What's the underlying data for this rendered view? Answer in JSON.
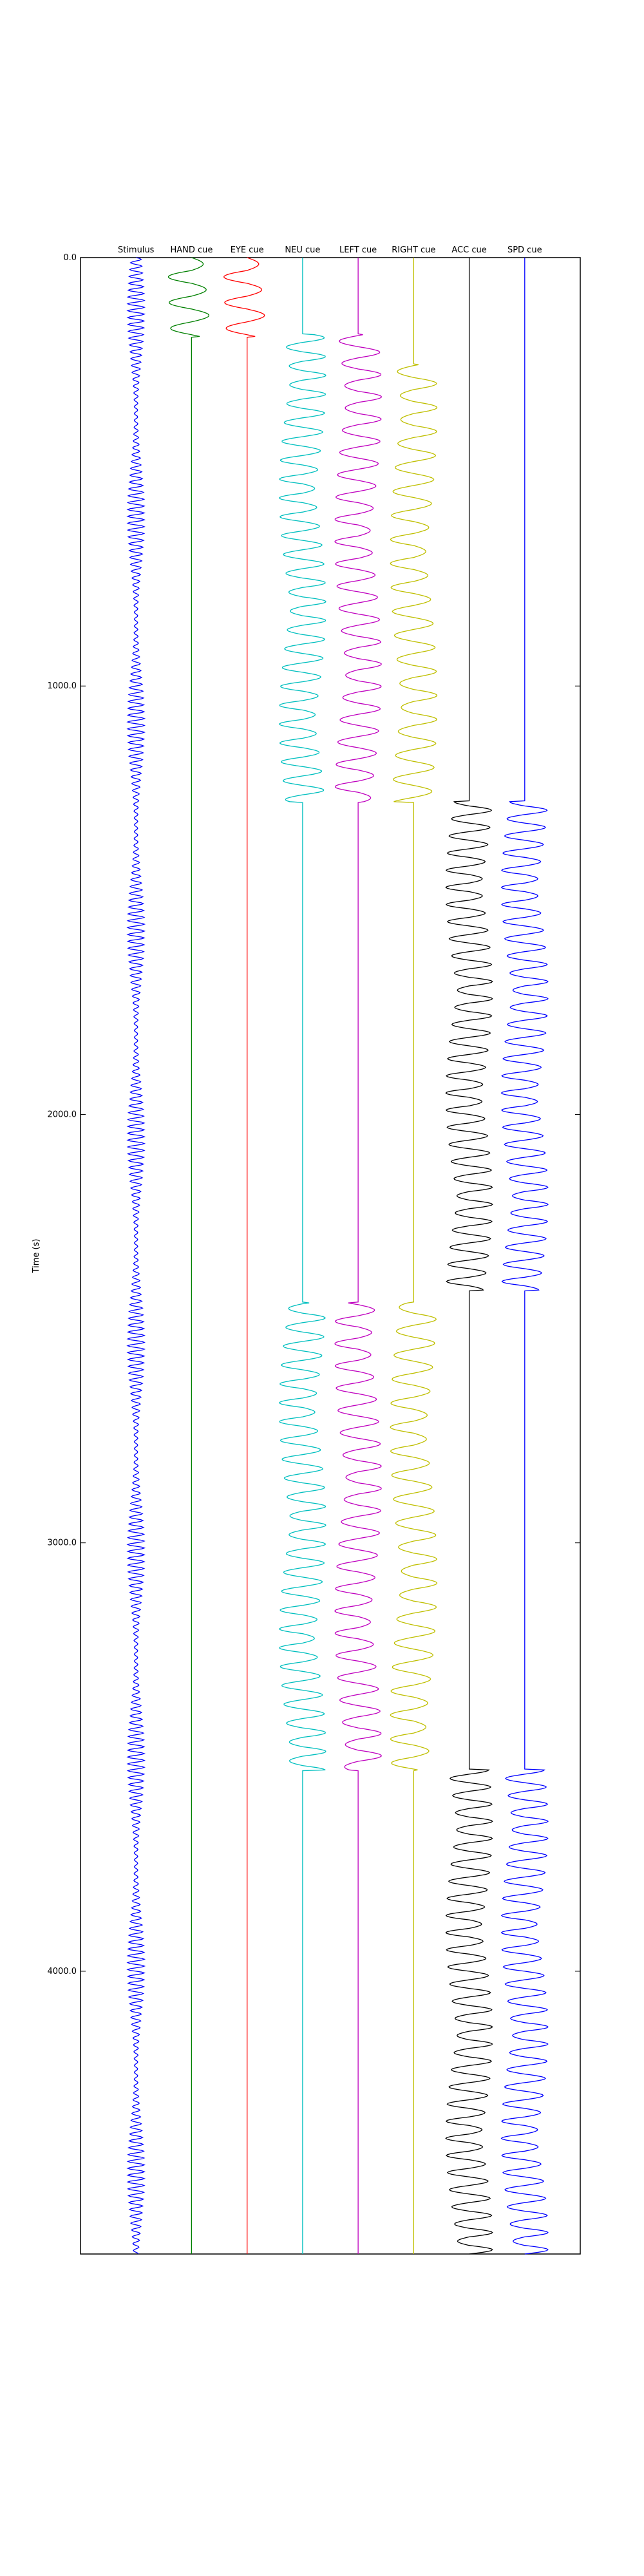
{
  "chart_data": {
    "type": "line",
    "title": "",
    "ylabel": "Time (s)",
    "xlabel": "",
    "ylim": [
      0,
      4660
    ],
    "y_inverted": true,
    "yticks": [
      0,
      1000,
      2000,
      3000,
      4000
    ],
    "ytick_labels": [
      "0.0",
      "1000.0",
      "2000.0",
      "3000.0",
      "4000.0"
    ],
    "grid": false,
    "series": [
      {
        "name": "Stimulus",
        "color": "#0000ff",
        "active": [
          [
            0,
            4660
          ]
        ],
        "period": 16
      },
      {
        "name": "HAND cue",
        "color": "#008000",
        "active": [
          [
            0,
            185
          ]
        ],
        "period": 30
      },
      {
        "name": "EYE cue",
        "color": "#ff0000",
        "active": [
          [
            0,
            185
          ]
        ],
        "period": 30
      },
      {
        "name": "NEU cue",
        "color": "#00bfbf",
        "active": [
          [
            180,
            1270
          ],
          [
            2440,
            3530
          ]
        ],
        "period": 22
      },
      {
        "name": "LEFT cue",
        "color": "#bf00bf",
        "active": [
          [
            180,
            1270
          ],
          [
            2440,
            3530
          ]
        ],
        "period": 26
      },
      {
        "name": "RIGHT cue",
        "color": "#bfbf00",
        "active": [
          [
            250,
            1270
          ],
          [
            2440,
            3530
          ]
        ],
        "period": 28
      },
      {
        "name": "ACC cue",
        "color": "#000000",
        "active": [
          [
            1270,
            2410
          ],
          [
            3530,
            4660
          ]
        ],
        "period": 20
      },
      {
        "name": "SPD cue",
        "color": "#0000ff",
        "active": [
          [
            1270,
            2410
          ],
          [
            3530,
            4660
          ]
        ],
        "period": 20
      }
    ]
  }
}
